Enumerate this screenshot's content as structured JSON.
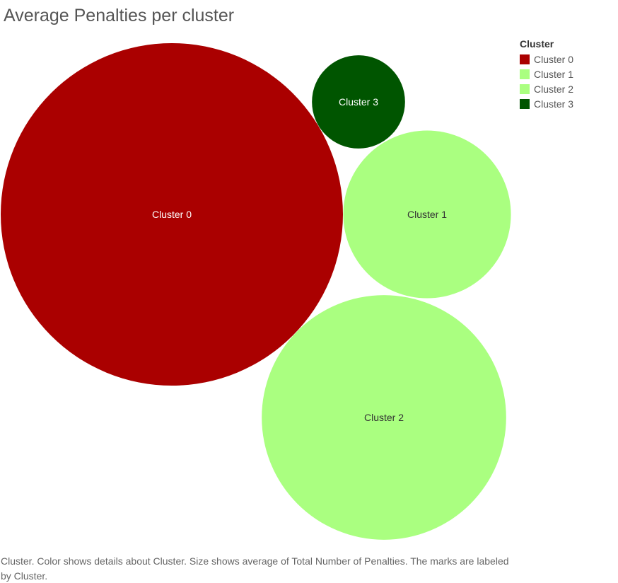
{
  "title": "Average Penalties per cluster",
  "legend": {
    "title": "Cluster",
    "items": [
      {
        "label": "Cluster 0",
        "color": "#aa0000"
      },
      {
        "label": "Cluster 1",
        "color": "#aaff80"
      },
      {
        "label": "Cluster 2",
        "color": "#aaff80"
      },
      {
        "label": "Cluster 3",
        "color": "#005500"
      }
    ]
  },
  "caption": "Cluster.  Color shows details about Cluster.  Size shows average of Total Number of Penalties.  The marks are labeled by Cluster.",
  "chart_data": {
    "type": "bubble",
    "title": "Average Penalties per cluster",
    "size_measure": "average of Total Number of Penalties",
    "color_measure": "Cluster",
    "label_measure": "Cluster",
    "values_note": "relative sizes only; no axis or numeric labels shown",
    "series": [
      {
        "name": "Cluster 0",
        "relative_size": 1.0,
        "color": "#aa0000",
        "label_color": "#ffffff"
      },
      {
        "name": "Cluster 1",
        "relative_size": 0.24,
        "color": "#aaff80",
        "label_color": "#333333"
      },
      {
        "name": "Cluster 2",
        "relative_size": 0.51,
        "color": "#aaff80",
        "label_color": "#333333"
      },
      {
        "name": "Cluster 3",
        "relative_size": 0.074,
        "color": "#005500",
        "label_color": "#ffffff"
      }
    ]
  }
}
